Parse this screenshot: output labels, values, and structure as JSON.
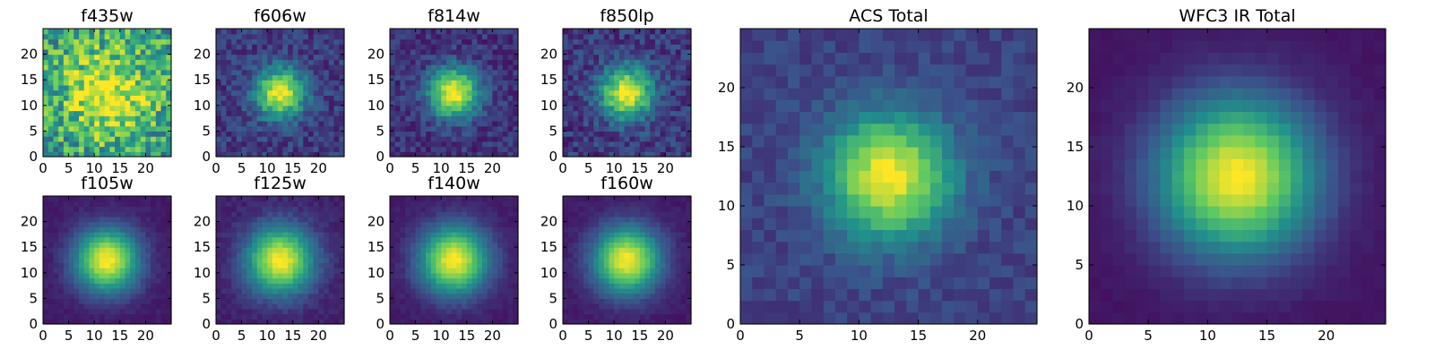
{
  "chart_data": [
    {
      "type": "heatmap",
      "title": "f435w",
      "xticks": [
        "0",
        "5",
        "10",
        "15",
        "20"
      ],
      "yticks": [
        "0",
        "5",
        "10",
        "15",
        "20"
      ],
      "xlim": [
        0,
        25
      ],
      "ylim": [
        0,
        25
      ],
      "grid_size": 25,
      "peak": [
        12,
        12
      ],
      "sigma": 6.0,
      "background": 0.55,
      "noise": 0.55,
      "seed": 11,
      "colormap": [
        "#440154",
        "#3b528b",
        "#21918c",
        "#5ec962",
        "#fde725"
      ]
    },
    {
      "type": "heatmap",
      "title": "f606w",
      "xticks": [
        "0",
        "5",
        "10",
        "15",
        "20"
      ],
      "yticks": [
        "0",
        "5",
        "10",
        "15",
        "20"
      ],
      "xlim": [
        0,
        25
      ],
      "ylim": [
        0,
        25
      ],
      "grid_size": 25,
      "peak": [
        12,
        12
      ],
      "sigma": 3.3,
      "background": 0.18,
      "noise": 0.22,
      "seed": 23,
      "colormap": [
        "#440154",
        "#3b528b",
        "#21918c",
        "#5ec962",
        "#fde725"
      ]
    },
    {
      "type": "heatmap",
      "title": "f814w",
      "xticks": [
        "0",
        "5",
        "10",
        "15",
        "20"
      ],
      "yticks": [
        "0",
        "5",
        "10",
        "15",
        "20"
      ],
      "xlim": [
        0,
        25
      ],
      "ylim": [
        0,
        25
      ],
      "grid_size": 25,
      "peak": [
        12,
        12
      ],
      "sigma": 3.4,
      "background": 0.15,
      "noise": 0.2,
      "seed": 37,
      "colormap": [
        "#440154",
        "#3b528b",
        "#21918c",
        "#5ec962",
        "#fde725"
      ]
    },
    {
      "type": "heatmap",
      "title": "f850lp",
      "xticks": [
        "0",
        "5",
        "10",
        "15",
        "20"
      ],
      "yticks": [
        "0",
        "5",
        "10",
        "15",
        "20"
      ],
      "xlim": [
        0,
        25
      ],
      "ylim": [
        0,
        25
      ],
      "grid_size": 25,
      "peak": [
        12,
        12
      ],
      "sigma": 3.5,
      "background": 0.17,
      "noise": 0.24,
      "seed": 41,
      "colormap": [
        "#440154",
        "#3b528b",
        "#21918c",
        "#5ec962",
        "#fde725"
      ]
    },
    {
      "type": "heatmap",
      "title": "f105w",
      "xticks": [
        "0",
        "5",
        "10",
        "15",
        "20"
      ],
      "yticks": [
        "0",
        "5",
        "10",
        "15",
        "20"
      ],
      "xlim": [
        0,
        25
      ],
      "ylim": [
        0,
        25
      ],
      "grid_size": 25,
      "peak": [
        12,
        12
      ],
      "sigma": 4.3,
      "background": 0.08,
      "noise": 0.06,
      "seed": 53,
      "colormap": [
        "#440154",
        "#3b528b",
        "#21918c",
        "#5ec962",
        "#fde725"
      ]
    },
    {
      "type": "heatmap",
      "title": "f125w",
      "xticks": [
        "0",
        "5",
        "10",
        "15",
        "20"
      ],
      "yticks": [
        "0",
        "5",
        "10",
        "15",
        "20"
      ],
      "xlim": [
        0,
        25
      ],
      "ylim": [
        0,
        25
      ],
      "grid_size": 25,
      "peak": [
        12,
        12
      ],
      "sigma": 4.5,
      "background": 0.1,
      "noise": 0.08,
      "seed": 67,
      "colormap": [
        "#440154",
        "#3b528b",
        "#21918c",
        "#5ec962",
        "#fde725"
      ]
    },
    {
      "type": "heatmap",
      "title": "f140w",
      "xticks": [
        "0",
        "5",
        "10",
        "15",
        "20"
      ],
      "yticks": [
        "0",
        "5",
        "10",
        "15",
        "20"
      ],
      "xlim": [
        0,
        25
      ],
      "ylim": [
        0,
        25
      ],
      "grid_size": 25,
      "peak": [
        12,
        12
      ],
      "sigma": 4.6,
      "background": 0.08,
      "noise": 0.06,
      "seed": 79,
      "colormap": [
        "#440154",
        "#3b528b",
        "#21918c",
        "#5ec962",
        "#fde725"
      ]
    },
    {
      "type": "heatmap",
      "title": "f160w",
      "xticks": [
        "0",
        "5",
        "10",
        "15",
        "20"
      ],
      "yticks": [
        "0",
        "5",
        "10",
        "15",
        "20"
      ],
      "xlim": [
        0,
        25
      ],
      "ylim": [
        0,
        25
      ],
      "grid_size": 25,
      "peak": [
        12,
        12
      ],
      "sigma": 4.5,
      "background": 0.08,
      "noise": 0.06,
      "seed": 83,
      "colormap": [
        "#440154",
        "#3b528b",
        "#21918c",
        "#5ec962",
        "#fde725"
      ]
    },
    {
      "type": "heatmap",
      "title": "ACS Total",
      "xticks": [
        "0",
        "5",
        "10",
        "15",
        "20"
      ],
      "yticks": [
        "0",
        "5",
        "10",
        "15",
        "20"
      ],
      "xlim": [
        0,
        25
      ],
      "ylim": [
        0,
        25
      ],
      "grid_size": 25,
      "peak": [
        12,
        12
      ],
      "sigma": 3.6,
      "background": 0.2,
      "noise": 0.12,
      "seed": 97,
      "colormap": [
        "#440154",
        "#3b528b",
        "#21918c",
        "#5ec962",
        "#fde725"
      ]
    },
    {
      "type": "heatmap",
      "title": "WFC3 IR Total",
      "xticks": [
        "0",
        "5",
        "10",
        "15",
        "20"
      ],
      "yticks": [
        "0",
        "5",
        "10",
        "15",
        "20"
      ],
      "xlim": [
        0,
        25
      ],
      "ylim": [
        0,
        25
      ],
      "grid_size": 25,
      "peak": [
        12,
        12
      ],
      "sigma": 4.6,
      "background": 0.06,
      "noise": 0.03,
      "seed": 101,
      "colormap": [
        "#440154",
        "#3b528b",
        "#21918c",
        "#5ec962",
        "#fde725"
      ]
    }
  ]
}
